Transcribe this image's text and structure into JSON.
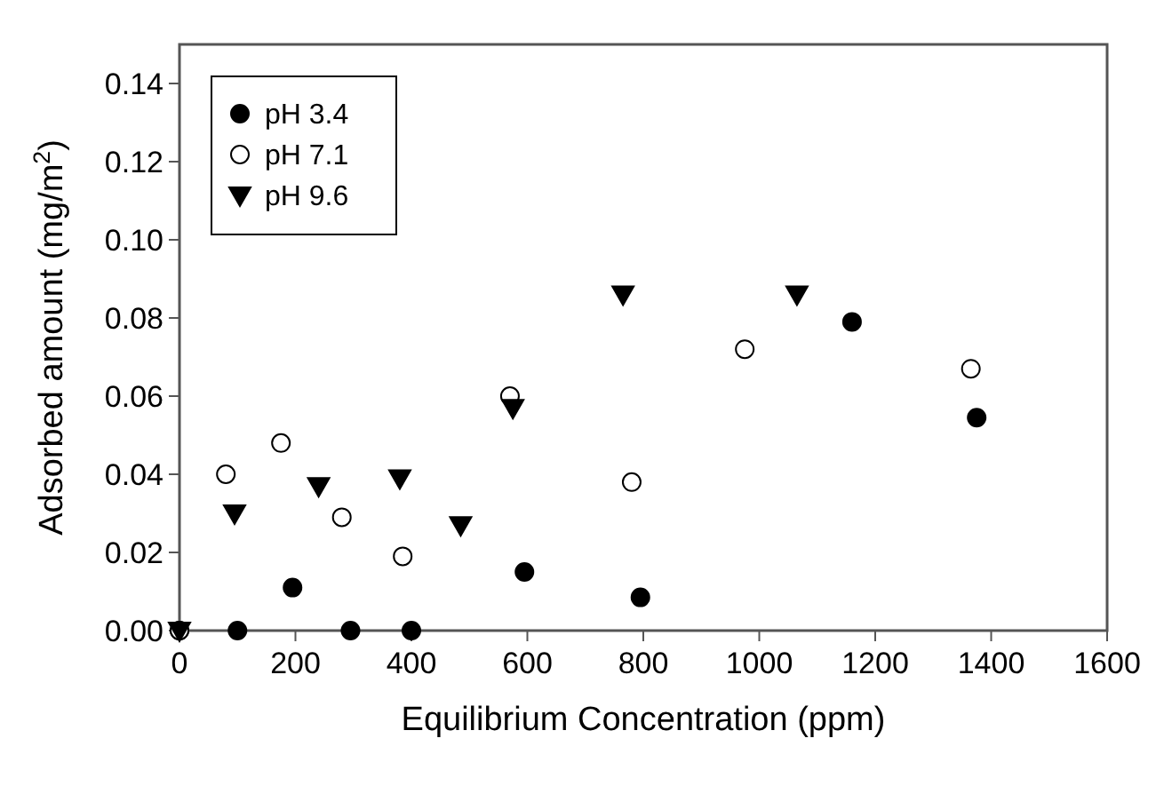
{
  "chart_data": {
    "type": "scatter",
    "xlabel": "Equilibrium Concentration (ppm)",
    "ylabel": "Adsorbed amount (mg/m$^{2}$)",
    "xlim": [
      0,
      1600
    ],
    "ylim": [
      0,
      0.15
    ],
    "xticks": [
      0,
      200,
      400,
      600,
      800,
      1000,
      1200,
      1400,
      1600
    ],
    "yticks": [
      {
        "value": 0,
        "label": "0.00"
      },
      {
        "value": 0.02,
        "label": "0.02"
      },
      {
        "value": 0.04,
        "label": "0.04"
      },
      {
        "value": 0.06,
        "label": "0.06"
      },
      {
        "value": 0.08,
        "label": "0.08"
      },
      {
        "value": 0.1,
        "label": "0.10"
      },
      {
        "value": 0.12,
        "label": "0.12"
      },
      {
        "value": 0.14,
        "label": "0.14"
      }
    ],
    "grid": false,
    "legend": "top left",
    "series": [
      {
        "name": "pH 3.4",
        "color": "#000000",
        "marker": "circle",
        "x": [
          0,
          100,
          195,
          295,
          400,
          595,
          795,
          1160,
          1375
        ],
        "values": [
          0,
          0,
          0.011,
          0,
          0,
          0.015,
          0.0085,
          0.079,
          0.0545
        ]
      },
      {
        "name": "pH 7.1",
        "color": "#ffffff",
        "marker": "circle",
        "x": [
          0,
          80,
          175,
          280,
          385,
          570,
          780,
          975,
          1365
        ],
        "values": [
          0,
          0.04,
          0.048,
          0.029,
          0.019,
          0.06,
          0.038,
          0.072,
          0.067
        ]
      },
      {
        "name": "pH 9.6",
        "color": "#000000",
        "marker": "triangle",
        "x": [
          0,
          95,
          240,
          380,
          485,
          575,
          765,
          1065
        ],
        "values": [
          0,
          0.03,
          0.037,
          0.039,
          0.027,
          0.057,
          0.086,
          0.086
        ]
      }
    ]
  }
}
